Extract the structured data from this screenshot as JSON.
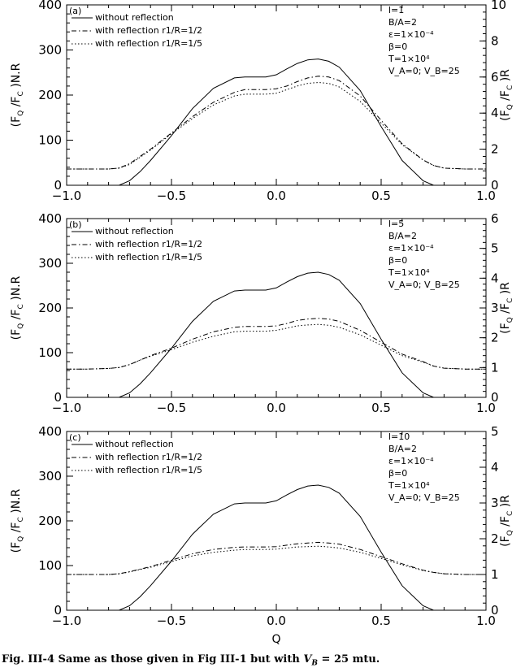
{
  "figure": {
    "caption_prefix": "Fig. III-4 Same as those given in Fig III-1 but with ",
    "caption_var": "V",
    "caption_sub": "B",
    "caption_suffix": " = 25 mtu.",
    "xlabel": "Q",
    "x_ticks": [
      "−1.0",
      "−0.5",
      "0.0",
      "0.5",
      "1.0"
    ],
    "x_tick_values": [
      -1.0,
      -0.5,
      0.0,
      0.5,
      1.0
    ],
    "ylabel_left": "(F_Q /F_C )N.R",
    "ylabel_right": "(F_Q /F_C )R",
    "legend": [
      {
        "label": "without reflection",
        "style": "solid"
      },
      {
        "label": "with reflection r1/R=1/2",
        "style": "dashdot"
      },
      {
        "label": "with reflection r1/R=1/5",
        "style": "dotted"
      }
    ]
  },
  "chart_data": [
    {
      "type": "line",
      "panel": "(a)",
      "params": [
        "l=1",
        "B/A=2",
        "ε=1×10⁻⁴",
        "β=0",
        "T=1×10⁴",
        "V_A=0; V_B=25"
      ],
      "xlim": [
        -1.0,
        1.0
      ],
      "ylim_left": [
        0,
        400
      ],
      "ylim_right": [
        0,
        10
      ],
      "y_ticks_left": [
        0,
        100,
        200,
        300,
        400
      ],
      "y_ticks_right": [
        0,
        2,
        4,
        6,
        8,
        10
      ],
      "x": [
        -1.0,
        -0.9,
        -0.8,
        -0.75,
        -0.7,
        -0.65,
        -0.6,
        -0.5,
        -0.4,
        -0.3,
        -0.2,
        -0.15,
        -0.1,
        -0.05,
        0.0,
        0.05,
        0.1,
        0.15,
        0.2,
        0.25,
        0.3,
        0.4,
        0.5,
        0.6,
        0.7,
        0.75,
        0.8,
        0.9,
        1.0
      ],
      "series": [
        {
          "name": "without reflection",
          "axis": "left",
          "style": "solid",
          "values": [
            0,
            0,
            0,
            0,
            10,
            30,
            55,
            110,
            170,
            215,
            238,
            240,
            240,
            240,
            245,
            258,
            270,
            278,
            280,
            275,
            262,
            210,
            130,
            55,
            10,
            0,
            0,
            0,
            0
          ]
        },
        {
          "name": "with reflection r1/R=1/2",
          "axis": "right",
          "style": "dashdot",
          "values": [
            0.9,
            0.9,
            0.9,
            0.95,
            1.2,
            1.6,
            2.0,
            2.9,
            3.8,
            4.6,
            5.15,
            5.3,
            5.3,
            5.3,
            5.35,
            5.5,
            5.75,
            5.95,
            6.05,
            6.0,
            5.8,
            4.95,
            3.6,
            2.3,
            1.4,
            1.1,
            0.95,
            0.9,
            0.9
          ]
        },
        {
          "name": "with reflection r1/R=1/5",
          "axis": "right",
          "style": "dotted",
          "values": [
            0.9,
            0.9,
            0.9,
            0.95,
            1.15,
            1.55,
            1.95,
            2.85,
            3.7,
            4.45,
            4.95,
            5.05,
            5.05,
            5.05,
            5.1,
            5.3,
            5.5,
            5.65,
            5.7,
            5.65,
            5.45,
            4.65,
            3.45,
            2.25,
            1.4,
            1.1,
            0.95,
            0.9,
            0.9
          ]
        }
      ]
    },
    {
      "type": "line",
      "panel": "(b)",
      "params": [
        "l=5",
        "B/A=2",
        "ε=1×10⁻⁴",
        "β=0",
        "T=1×10⁴",
        "V_A=0; V_B=25"
      ],
      "xlim": [
        -1.0,
        1.0
      ],
      "ylim_left": [
        0,
        400
      ],
      "ylim_right": [
        0,
        6
      ],
      "y_ticks_left": [
        0,
        100,
        200,
        300,
        400
      ],
      "y_ticks_right": [
        0,
        1,
        2,
        3,
        4,
        5,
        6
      ],
      "x": [
        -1.0,
        -0.9,
        -0.8,
        -0.75,
        -0.7,
        -0.65,
        -0.6,
        -0.5,
        -0.4,
        -0.3,
        -0.2,
        -0.15,
        -0.1,
        -0.05,
        0.0,
        0.05,
        0.1,
        0.15,
        0.2,
        0.25,
        0.3,
        0.4,
        0.5,
        0.6,
        0.7,
        0.75,
        0.8,
        0.9,
        1.0
      ],
      "series": [
        {
          "name": "without reflection",
          "axis": "left",
          "style": "solid",
          "values": [
            0,
            0,
            0,
            0,
            10,
            30,
            55,
            110,
            170,
            215,
            238,
            240,
            240,
            240,
            245,
            258,
            270,
            278,
            280,
            275,
            262,
            210,
            130,
            55,
            10,
            0,
            0,
            0,
            0
          ]
        },
        {
          "name": "with reflection r1/R=1/2",
          "axis": "right",
          "style": "dashdot",
          "values": [
            0.95,
            0.95,
            0.97,
            1.0,
            1.1,
            1.25,
            1.4,
            1.65,
            1.95,
            2.2,
            2.35,
            2.38,
            2.38,
            2.38,
            2.4,
            2.48,
            2.58,
            2.63,
            2.65,
            2.63,
            2.55,
            2.25,
            1.85,
            1.45,
            1.2,
            1.05,
            0.98,
            0.95,
            0.95
          ]
        },
        {
          "name": "with reflection r1/R=1/5",
          "axis": "right",
          "style": "dotted",
          "values": [
            0.95,
            0.95,
            0.97,
            1.0,
            1.1,
            1.25,
            1.38,
            1.6,
            1.85,
            2.05,
            2.2,
            2.22,
            2.22,
            2.22,
            2.25,
            2.32,
            2.4,
            2.43,
            2.45,
            2.42,
            2.35,
            2.1,
            1.75,
            1.4,
            1.18,
            1.05,
            0.98,
            0.95,
            0.95
          ]
        }
      ]
    },
    {
      "type": "line",
      "panel": "(c)",
      "params": [
        "l=10",
        "B/A=2",
        "ε=1×10⁻⁴",
        "β=0",
        "T=1×10⁴",
        "V_A=0; V_B=25"
      ],
      "xlabel": "Q",
      "xlim": [
        -1.0,
        1.0
      ],
      "ylim_left": [
        0,
        400
      ],
      "ylim_right": [
        0,
        5
      ],
      "y_ticks_left": [
        0,
        100,
        200,
        300,
        400
      ],
      "y_ticks_right": [
        0,
        1,
        2,
        3,
        4,
        5
      ],
      "x": [
        -1.0,
        -0.9,
        -0.8,
        -0.75,
        -0.7,
        -0.65,
        -0.6,
        -0.5,
        -0.4,
        -0.3,
        -0.2,
        -0.15,
        -0.1,
        -0.05,
        0.0,
        0.05,
        0.1,
        0.15,
        0.2,
        0.25,
        0.3,
        0.4,
        0.5,
        0.6,
        0.7,
        0.75,
        0.8,
        0.9,
        1.0
      ],
      "series": [
        {
          "name": "without reflection",
          "axis": "left",
          "style": "solid",
          "values": [
            0,
            0,
            0,
            0,
            10,
            30,
            55,
            110,
            170,
            215,
            238,
            240,
            240,
            240,
            245,
            258,
            270,
            278,
            280,
            275,
            262,
            210,
            130,
            55,
            10,
            0,
            0,
            0,
            0
          ]
        },
        {
          "name": "with reflection r1/R=1/2",
          "axis": "right",
          "style": "dashdot",
          "values": [
            1.0,
            1.0,
            1.0,
            1.02,
            1.08,
            1.15,
            1.22,
            1.4,
            1.58,
            1.7,
            1.76,
            1.77,
            1.77,
            1.77,
            1.78,
            1.82,
            1.86,
            1.88,
            1.9,
            1.88,
            1.85,
            1.7,
            1.5,
            1.3,
            1.12,
            1.06,
            1.02,
            1.0,
            1.0
          ]
        },
        {
          "name": "with reflection r1/R=1/5",
          "axis": "right",
          "style": "dotted",
          "values": [
            1.0,
            1.0,
            1.0,
            1.02,
            1.07,
            1.14,
            1.2,
            1.36,
            1.52,
            1.62,
            1.68,
            1.7,
            1.7,
            1.7,
            1.71,
            1.74,
            1.77,
            1.78,
            1.79,
            1.77,
            1.74,
            1.62,
            1.45,
            1.27,
            1.11,
            1.06,
            1.02,
            1.0,
            1.0
          ]
        }
      ]
    }
  ]
}
